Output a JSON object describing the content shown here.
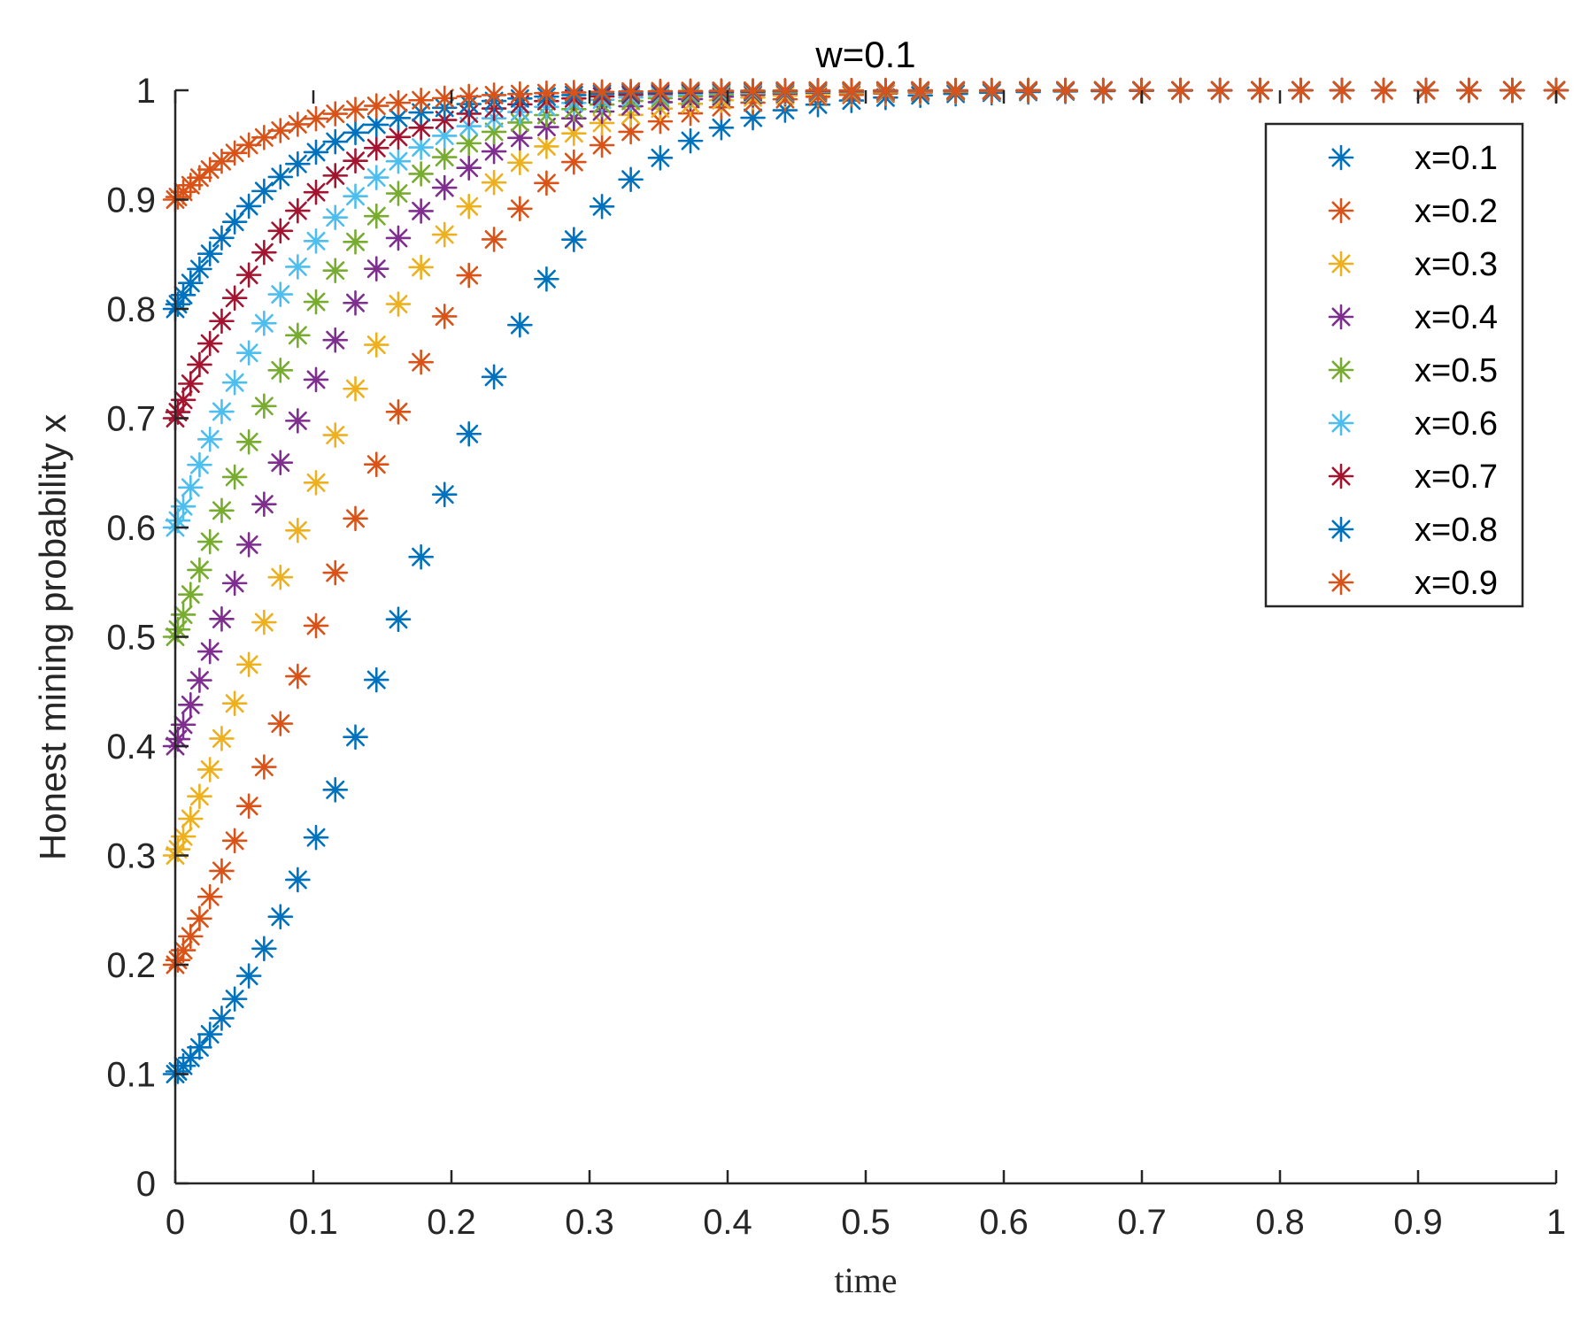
{
  "chart_data": {
    "type": "scatter",
    "title": "w=0.1",
    "xlabel": "time",
    "ylabel": "Honest mining probability x",
    "xlim": [
      0,
      1
    ],
    "ylim": [
      0,
      1
    ],
    "xticks": [
      "0",
      "0.1",
      "0.2",
      "0.3",
      "0.4",
      "0.5",
      "0.6",
      "0.7",
      "0.8",
      "0.9",
      "1"
    ],
    "yticks": [
      "0",
      "0.1",
      "0.2",
      "0.3",
      "0.4",
      "0.5",
      "0.6",
      "0.7",
      "0.8",
      "0.9",
      "1"
    ],
    "grid": false,
    "legend_position": "top-right",
    "marker": "asterisk",
    "series": [
      {
        "name": "x=0.1",
        "color": "#0072BD",
        "x0": 0.1
      },
      {
        "name": "x=0.2",
        "color": "#D95319",
        "x0": 0.2
      },
      {
        "name": "x=0.3",
        "color": "#EDB120",
        "x0": 0.3
      },
      {
        "name": "x=0.4",
        "color": "#7E2F8E",
        "x0": 0.4
      },
      {
        "name": "x=0.5",
        "color": "#77AC30",
        "x0": 0.5
      },
      {
        "name": "x=0.6",
        "color": "#4DBEEE",
        "x0": 0.6
      },
      {
        "name": "x=0.7",
        "color": "#A2142F",
        "x0": 0.7
      },
      {
        "name": "x=0.8",
        "color": "#0072BD",
        "x0": 0.8
      },
      {
        "name": "x=0.9",
        "color": "#D95319",
        "x0": 0.9
      }
    ]
  }
}
